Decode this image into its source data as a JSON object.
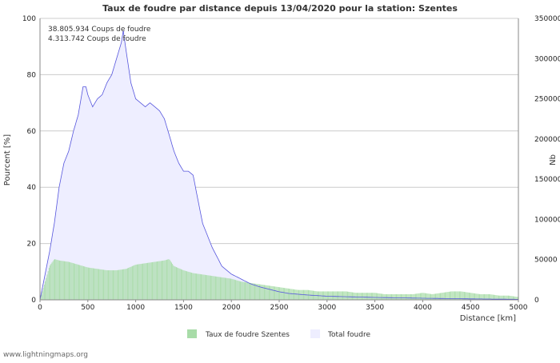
{
  "chart_data": {
    "type": "area",
    "title": "Taux de foudre par distance depuis 13/04/2020 pour la station: Szentes",
    "xlabel": "Distance   [km]",
    "ylabel_left": "Pourcent   [%]",
    "ylabel_right": "Nb",
    "xlim": [
      0,
      5000
    ],
    "ylim_left": [
      0,
      100
    ],
    "ylim_right": [
      0,
      350000
    ],
    "x_ticks": [
      "0",
      "500",
      "1000",
      "1500",
      "2000",
      "2500",
      "3000",
      "3500",
      "4000",
      "4500",
      "5000"
    ],
    "y_left_ticks": [
      "0",
      "20",
      "40",
      "60",
      "80",
      "100"
    ],
    "y_right_ticks": [
      "0",
      "50000",
      "100000",
      "150000",
      "200000",
      "250000",
      "300000",
      "350000"
    ],
    "annotations": [
      "38.805.934  Coups de foudre",
      "4.313.742  Coups de foudre"
    ],
    "series": [
      {
        "name": "Taux de foudre Szentes",
        "kind": "bars",
        "axis": "left",
        "color": "#a8dca8",
        "x": [
          0,
          100,
          150,
          200,
          300,
          400,
          500,
          600,
          700,
          800,
          900,
          1000,
          1100,
          1200,
          1300,
          1350,
          1400,
          1500,
          1600,
          1700,
          1800,
          1900,
          2000,
          2100,
          2200,
          2300,
          2400,
          2500,
          2600,
          2700,
          2800,
          2900,
          3000,
          3100,
          3200,
          3300,
          3400,
          3500,
          3600,
          3700,
          3800,
          3900,
          4000,
          4100,
          4200,
          4300,
          4400,
          4500,
          4600,
          4700,
          4800,
          4900,
          5000
        ],
        "values": [
          0,
          12,
          14.5,
          14,
          13.5,
          12.5,
          11.5,
          11,
          10.5,
          10.5,
          11,
          12.5,
          13,
          13.5,
          14,
          14.5,
          12,
          10.5,
          9.5,
          9,
          8.5,
          8,
          7.5,
          6.5,
          6,
          5.5,
          5,
          4.5,
          4,
          3.5,
          3.5,
          3,
          3,
          3,
          3,
          2.5,
          2.5,
          2.5,
          2,
          2,
          2,
          2,
          2.5,
          2,
          2.5,
          3,
          3,
          2.5,
          2,
          2,
          1.5,
          1.5,
          1
        ]
      },
      {
        "name": "Total foudre",
        "kind": "area",
        "axis": "right",
        "color": "#eeeeff",
        "line_color": "#5555dd",
        "x": [
          0,
          50,
          100,
          150,
          200,
          250,
          300,
          350,
          400,
          450,
          480,
          500,
          550,
          600,
          650,
          700,
          750,
          800,
          850,
          870,
          900,
          950,
          1000,
          1050,
          1100,
          1150,
          1200,
          1250,
          1300,
          1350,
          1400,
          1450,
          1500,
          1550,
          1600,
          1650,
          1700,
          1750,
          1800,
          1900,
          2000,
          2100,
          2200,
          2300,
          2400,
          2500,
          2600,
          2800,
          3000,
          3500,
          4000,
          4500,
          5000
        ],
        "values": [
          0,
          30000,
          60000,
          95000,
          140000,
          170000,
          185000,
          210000,
          230000,
          265000,
          265000,
          255000,
          240000,
          250000,
          255000,
          270000,
          280000,
          300000,
          320000,
          335000,
          310000,
          270000,
          250000,
          245000,
          240000,
          245000,
          240000,
          235000,
          225000,
          205000,
          185000,
          170000,
          160000,
          160000,
          155000,
          125000,
          95000,
          80000,
          65000,
          42000,
          32000,
          26000,
          20000,
          16000,
          13000,
          10000,
          8000,
          6000,
          4500,
          3000,
          2000,
          1200,
          600
        ]
      }
    ]
  },
  "legend": [
    {
      "label": "Taux de foudre Szentes",
      "color": "#a8dca8"
    },
    {
      "label": "Total foudre",
      "color": "#eeeeff"
    }
  ],
  "credit": "www.lightningmaps.org"
}
